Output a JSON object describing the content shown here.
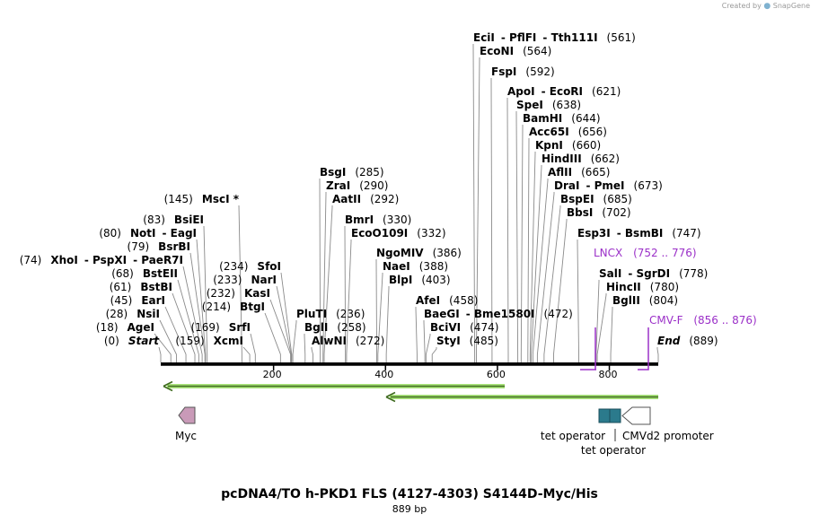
{
  "credit": {
    "text": "Created by",
    "brand": "SnapGene"
  },
  "title": "pcDNA4/TO h-PKD1 FLS (4127-4303) S4144D-Myc/His",
  "subtitle": "889 bp",
  "sequence": {
    "length": 889,
    "ticks": [
      200,
      400,
      600,
      800
    ]
  },
  "colors": {
    "feature_label": "#9b30c8",
    "primer_green": "#78d04a",
    "tet_operator": "#2b7a8c",
    "myc": "#c99ab8"
  },
  "sites": [
    {
      "id": "start",
      "en": "Start",
      "pos": "(0)",
      "italic": true,
      "label_first": false
    },
    {
      "id": "agei",
      "en": "AgeI",
      "pos": "(18)",
      "label_first": false
    },
    {
      "id": "nsii",
      "en": "NsiI",
      "pos": "(28)",
      "label_first": false
    },
    {
      "id": "eari",
      "en": "EarI",
      "pos": "(45)",
      "label_first": false
    },
    {
      "id": "bstbi",
      "en": "BstBI",
      "pos": "(61)",
      "label_first": false
    },
    {
      "id": "bsteii",
      "en": "BstEII",
      "pos": "(68)",
      "label_first": false
    },
    {
      "id": "xhoi",
      "en": "XhoI",
      "pos": "(74)",
      "extra": [
        "PspXI",
        "PaeR7I"
      ],
      "label_first": false
    },
    {
      "id": "bsrbi",
      "en": "BsrBI",
      "pos": "(79)",
      "label_first": false
    },
    {
      "id": "noti",
      "en": "NotI",
      "pos": "(80)",
      "extra": [
        "EagI"
      ],
      "label_first": false
    },
    {
      "id": "bsiei",
      "en": "BsiEI",
      "pos": "(83)",
      "label_first": false
    },
    {
      "id": "msci",
      "en": "MscI *",
      "pos": "(145)",
      "label_first": false
    },
    {
      "id": "xcmi",
      "en": "XcmI",
      "pos": "(159)",
      "label_first": false
    },
    {
      "id": "srfi",
      "en": "SrfI",
      "pos": "(169)",
      "label_first": false
    },
    {
      "id": "btgi",
      "en": "BtgI",
      "pos": "(214)",
      "label_first": false
    },
    {
      "id": "kasi",
      "en": "KasI",
      "pos": "(232)",
      "label_first": false
    },
    {
      "id": "nari",
      "en": "NarI",
      "pos": "(233)",
      "label_first": false
    },
    {
      "id": "sfoi",
      "en": "SfoI",
      "pos": "(234)",
      "label_first": false
    },
    {
      "id": "pluti",
      "en": "PluTI",
      "pos": "(236)",
      "label_first": true
    },
    {
      "id": "bgli",
      "en": "BglI",
      "pos": "(258)",
      "label_first": true
    },
    {
      "id": "alwni",
      "en": "AlwNI",
      "pos": "(272)",
      "label_first": true
    },
    {
      "id": "bsgi",
      "en": "BsgI",
      "pos": "(285)",
      "label_first": true
    },
    {
      "id": "zrai",
      "en": "ZraI",
      "pos": "(290)",
      "label_first": true
    },
    {
      "id": "aatii",
      "en": "AatII",
      "pos": "(292)",
      "label_first": true
    },
    {
      "id": "bmri",
      "en": "BmrI",
      "pos": "(330)",
      "label_first": true
    },
    {
      "id": "eco0109i",
      "en": "EcoO109I",
      "pos": "(332)",
      "label_first": true
    },
    {
      "id": "ngomiv",
      "en": "NgoMIV",
      "pos": "(386)",
      "label_first": true
    },
    {
      "id": "naei",
      "en": "NaeI",
      "pos": "(388)",
      "label_first": true
    },
    {
      "id": "blpi",
      "en": "BlpI",
      "pos": "(403)",
      "label_first": true
    },
    {
      "id": "afei",
      "en": "AfeI",
      "pos": "(458)",
      "label_first": true
    },
    {
      "id": "baegi",
      "en": "BaeGI",
      "extra": [
        "Bme1580I"
      ],
      "pos": "(472)",
      "label_first": true
    },
    {
      "id": "bcivi",
      "en": "BciVI",
      "pos": "(474)",
      "label_first": true
    },
    {
      "id": "styi",
      "en": "StyI",
      "pos": "(485)",
      "label_first": true
    },
    {
      "id": "ecii",
      "en": "EciI",
      "extra": [
        "PflFI",
        "Tth111I"
      ],
      "pos": "(561)",
      "label_first": true
    },
    {
      "id": "econi",
      "en": "EcoNI",
      "pos": "(564)",
      "label_first": true
    },
    {
      "id": "fspi",
      "en": "FspI",
      "pos": "(592)",
      "label_first": true
    },
    {
      "id": "apoi",
      "en": "ApoI",
      "extra": [
        "EcoRI"
      ],
      "pos": "(621)",
      "label_first": true
    },
    {
      "id": "spei",
      "en": "SpeI",
      "pos": "(638)",
      "label_first": true
    },
    {
      "id": "bamhi",
      "en": "BamHI",
      "pos": "(644)",
      "label_first": true
    },
    {
      "id": "acc65i",
      "en": "Acc65I",
      "pos": "(656)",
      "label_first": true
    },
    {
      "id": "kpni",
      "en": "KpnI",
      "pos": "(660)",
      "label_first": true
    },
    {
      "id": "hindiii",
      "en": "HindIII",
      "pos": "(662)",
      "label_first": true
    },
    {
      "id": "aflii",
      "en": "AflII",
      "pos": "(665)",
      "label_first": true
    },
    {
      "id": "drai",
      "en": "DraI",
      "extra": [
        "PmeI"
      ],
      "pos": "(673)",
      "label_first": true
    },
    {
      "id": "bspei",
      "en": "BspEI",
      "pos": "(685)",
      "label_first": true
    },
    {
      "id": "bbsi",
      "en": "BbsI",
      "pos": "(702)",
      "label_first": true
    },
    {
      "id": "esp3i",
      "en": "Esp3I",
      "extra": [
        "BsmBI"
      ],
      "pos": "(747)",
      "label_first": true
    },
    {
      "id": "sali",
      "en": "SalI",
      "extra": [
        "SgrDI"
      ],
      "pos": "(778)",
      "label_first": true
    },
    {
      "id": "hincii",
      "en": "HincII",
      "pos": "(780)",
      "label_first": true
    },
    {
      "id": "bglii",
      "en": "BglII",
      "pos": "(804)",
      "label_first": true
    },
    {
      "id": "end",
      "en": "End",
      "pos": "(889)",
      "italic": true,
      "label_first": true
    }
  ],
  "features": [
    {
      "id": "lncx",
      "name": "LNCX",
      "range": "(752 .. 776)"
    },
    {
      "id": "cmvf",
      "name": "CMV-F",
      "range": "(856 .. 876)"
    }
  ],
  "annotations": {
    "myc": "Myc",
    "tet_operator_1": "tet operator",
    "tet_operator_2": "tet operator",
    "cmvd2": "CMVd2 promoter"
  }
}
